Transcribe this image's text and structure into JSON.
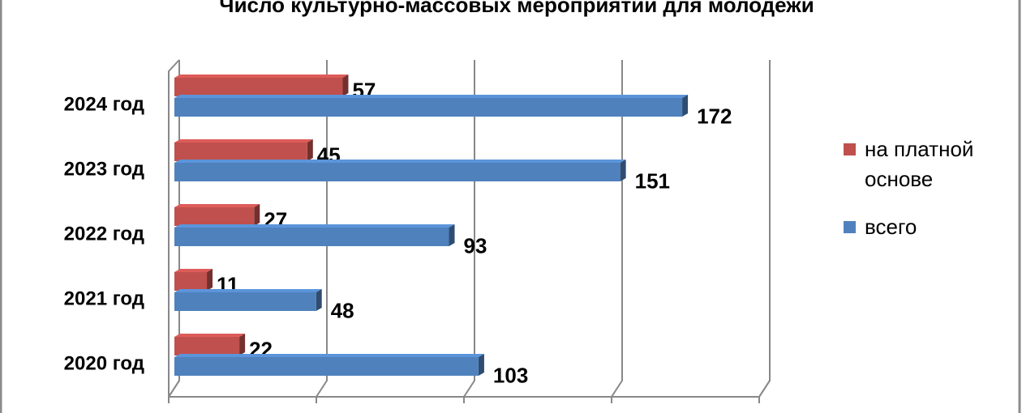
{
  "chart_data": {
    "type": "bar3d_horizontal",
    "title": "Число культурно-массовых мероприятий  для молодежи",
    "categories": [
      "2020 год",
      "2021 год",
      "2022 год",
      "2023 год",
      "2024 год"
    ],
    "series": [
      {
        "name": "на платной основе",
        "color": "#c0504d",
        "values": [
          22,
          11,
          27,
          45,
          57
        ]
      },
      {
        "name": "всего",
        "color": "#4f81bd",
        "values": [
          103,
          48,
          93,
          151,
          172
        ]
      }
    ],
    "xlim": [
      0,
      200
    ],
    "xticks": [
      0,
      50,
      100,
      150,
      200
    ],
    "grid": true,
    "legend": "right"
  }
}
